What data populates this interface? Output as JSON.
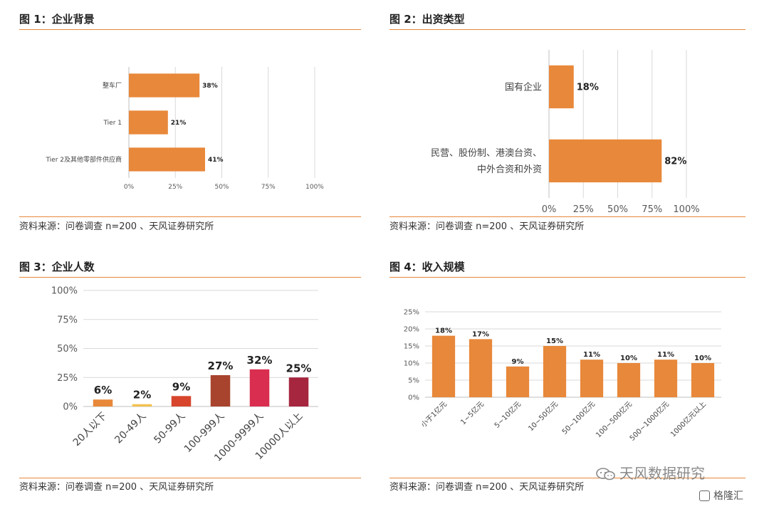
{
  "panels": [
    {
      "title": "图 1：企业背景",
      "source": "资料来源：问卷调查 n=200 、天风证券研究所",
      "chart_data": {
        "type": "bar",
        "orientation": "horizontal",
        "categories": [
          "整车厂",
          "Tier 1",
          "Tier 2及其他零部件供应商"
        ],
        "values": [
          38,
          21,
          41
        ],
        "value_labels": [
          "38%",
          "21%",
          "41%"
        ],
        "xticks": [
          "0%",
          "25%",
          "50%",
          "75%",
          "100%"
        ],
        "xlim": [
          0,
          100
        ],
        "grid": true,
        "color": "#e8883a"
      }
    },
    {
      "title": "图 2：出资类型",
      "source": "资料来源：问卷调查 n=200 、天风证券研究所",
      "chart_data": {
        "type": "bar",
        "orientation": "horizontal",
        "categories": [
          "国有企业",
          "民营、股份制、港澳台资、中外合资和外资"
        ],
        "category_lines": [
          [
            "国有企业"
          ],
          [
            "民营、股份制、港澳台资、",
            "中外合资和外资"
          ]
        ],
        "values": [
          18,
          82
        ],
        "value_labels": [
          "18%",
          "82%"
        ],
        "xticks": [
          "0%",
          "25%",
          "50%",
          "75%",
          "100%"
        ],
        "xlim": [
          0,
          100
        ],
        "grid": true,
        "color": "#e8883a"
      }
    },
    {
      "title": "图 3：企业人数",
      "source": "资料来源：问卷调查 n=200 、天风证券研究所",
      "chart_data": {
        "type": "bar",
        "orientation": "vertical",
        "categories": [
          "20人以下",
          "20-49人",
          "50-99人",
          "100-999人",
          "1000-9999人",
          "10000人以上"
        ],
        "values": [
          6,
          2,
          9,
          27,
          32,
          25
        ],
        "value_labels": [
          "6%",
          "2%",
          "9%",
          "27%",
          "32%",
          "25%"
        ],
        "colors": [
          "#e8883a",
          "#f2c14e",
          "#d6452c",
          "#a8432e",
          "#d92e4f",
          "#a5263e"
        ],
        "yticks": [
          "0%",
          "25%",
          "50%",
          "75%",
          "100%"
        ],
        "ylim": [
          0,
          100
        ],
        "grid": true
      }
    },
    {
      "title": "图 4：收入规模",
      "source": "资料来源：问卷调查 n=200 、天风证券研究所",
      "chart_data": {
        "type": "bar",
        "orientation": "vertical",
        "categories": [
          "小于1亿元",
          "1~5亿元",
          "5~10亿元",
          "10~50亿元",
          "50~100亿元",
          "100~500亿元",
          "500~1000亿元",
          "1000亿元以上"
        ],
        "values": [
          18,
          17,
          9,
          15,
          11,
          10,
          11,
          10
        ],
        "value_labels": [
          "18%",
          "17%",
          "9%",
          "15%",
          "11%",
          "10%",
          "11%",
          "10%"
        ],
        "yticks": [
          "0%",
          "5%",
          "10%",
          "15%",
          "20%",
          "25%"
        ],
        "ylim": [
          0,
          25
        ],
        "grid": true,
        "color": "#e8883a"
      }
    }
  ],
  "watermark": {
    "text": "天风数据研究"
  },
  "brand": {
    "text": "格隆汇"
  }
}
